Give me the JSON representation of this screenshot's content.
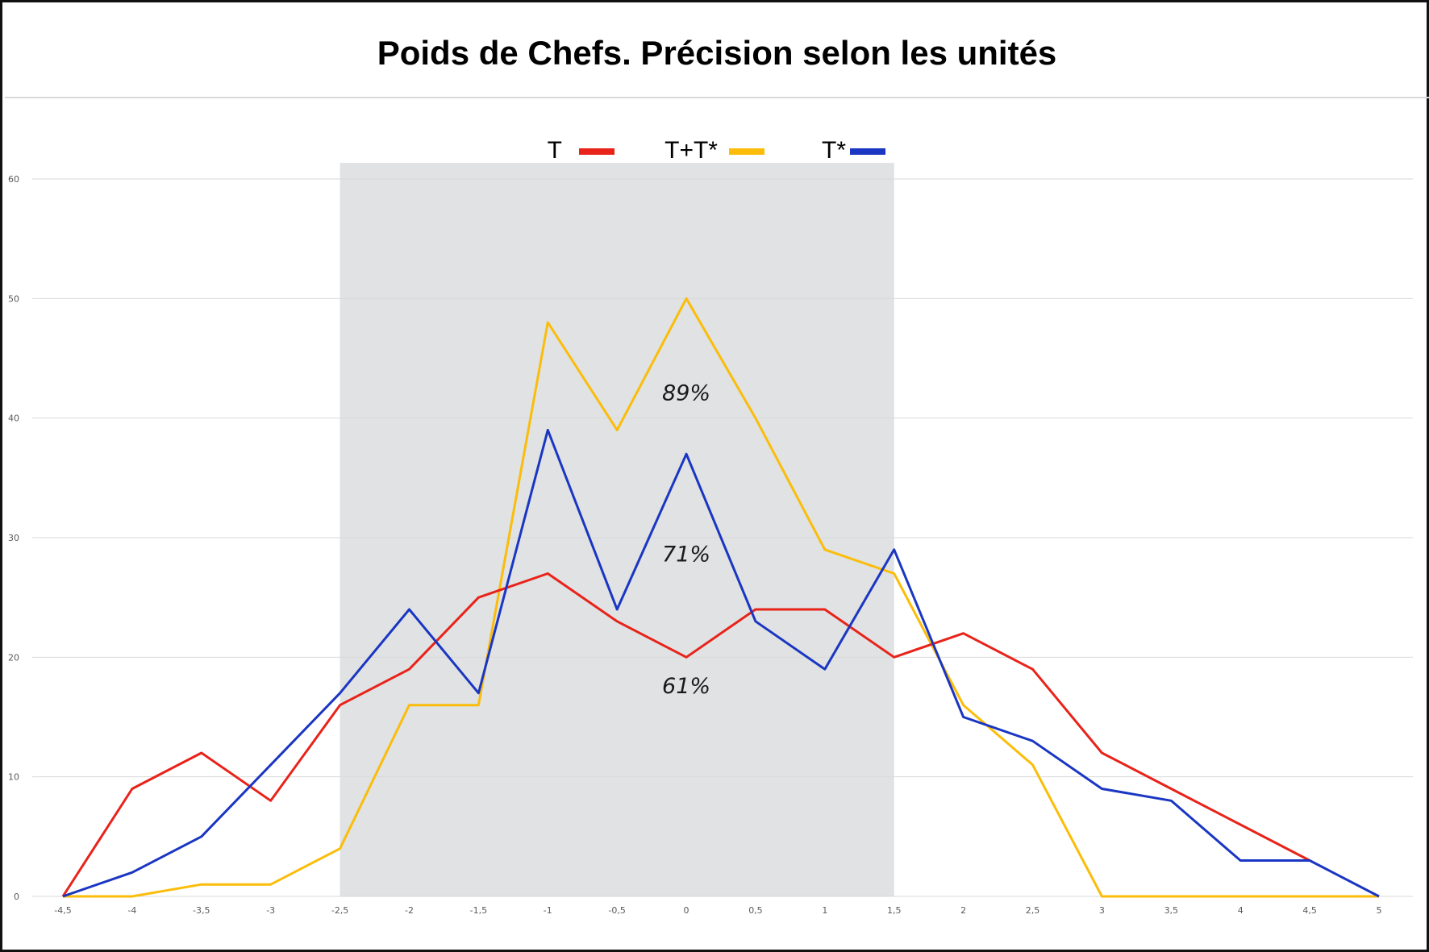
{
  "colors": {
    "T": "#e8231a",
    "T+T*": "#fbbd0a",
    "T*": "#1a36c2",
    "band": "#e0e2e3",
    "grid": "#d9d9d9"
  },
  "chart_data": {
    "type": "line",
    "title": "Poids de Chefs. Précision selon les unités",
    "x": [
      -4.5,
      -4,
      -3.5,
      -3,
      -2.5,
      -2,
      -1.5,
      -1,
      -0.5,
      0,
      0.5,
      1,
      1.5,
      2,
      2.5,
      3,
      3.5,
      4,
      4.5,
      5
    ],
    "x_tick_labels": [
      "-4,5",
      "-4",
      "-3,5",
      "-3",
      "-2,5",
      "-2",
      "-1,5",
      "-1",
      "-0,5",
      "0",
      "0,5",
      "1",
      "1,5",
      "2",
      "2,5",
      "3",
      "3,5",
      "4",
      "4,5",
      "5"
    ],
    "y_ticks": [
      0,
      10,
      20,
      30,
      40,
      50,
      60
    ],
    "ylim": [
      0,
      60
    ],
    "xlabel": "",
    "ylabel": "",
    "grid": true,
    "legend_position": "top",
    "series": [
      {
        "name": "T",
        "color": "#e8231a",
        "values": [
          0,
          9,
          12,
          8,
          16,
          19,
          25,
          27,
          23,
          20,
          24,
          24,
          20,
          22,
          19,
          12,
          9,
          6,
          3,
          null
        ]
      },
      {
        "name": "T+T*",
        "color": "#fbbd0a",
        "values": [
          0,
          0,
          1,
          1,
          4,
          16,
          16,
          48,
          39,
          50,
          40,
          29,
          27,
          16,
          11,
          0,
          0,
          0,
          0,
          0
        ]
      },
      {
        "name": "T*",
        "color": "#1a36c2",
        "values": [
          0,
          2,
          5,
          11,
          17,
          24,
          17,
          39,
          24,
          37,
          23,
          19,
          29,
          15,
          13,
          9,
          8,
          3,
          3,
          0
        ]
      }
    ],
    "shaded_range": [
      -2.5,
      1.5
    ],
    "annotations": [
      {
        "text": "89%",
        "x": 0,
        "y": 41.5
      },
      {
        "text": "71%",
        "x": 0,
        "y": 28
      },
      {
        "text": "61%",
        "x": 0,
        "y": 17
      }
    ]
  }
}
